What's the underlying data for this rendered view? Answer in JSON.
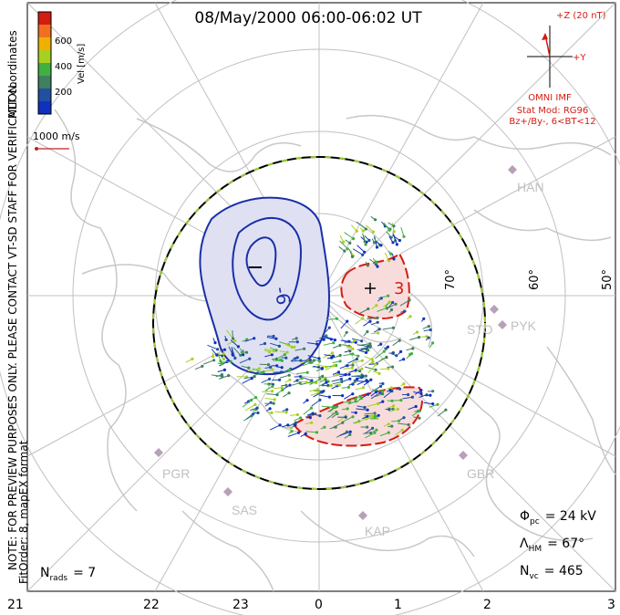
{
  "title": "08/May/2000 06:00-06:02 UT",
  "colorbar": {
    "label": "Vel [m/s]",
    "tick_labels": [
      "600",
      "400",
      "200"
    ],
    "colors": [
      "#d41c10",
      "#f07020",
      "#f0b000",
      "#a8d020",
      "#40b040",
      "#408060",
      "#2050a0",
      "#1030c0"
    ]
  },
  "coordinate_system": "MLT coordinates",
  "side_note": "NOTE: FOR PREVIEW PURPOSES ONLY. PLEASE CONTACT VT-SD STAFF FOR VERIFICATION.",
  "fit_order": "FitOrder: 8, mapEX format",
  "reference_vector": {
    "label": "1000 m/s",
    "color": "#c02020"
  },
  "imf": {
    "bz_label": "+Z (20 nT)",
    "by_label": "+Y",
    "source": "OMNI IMF",
    "stat_mod": "Stat Mod: RG96",
    "condition": "Bz+/By-, 6<BT<12",
    "color": "#d41c10"
  },
  "latitude_labels": [
    "70°",
    "60°",
    "50°"
  ],
  "mlt_labels": [
    "21",
    "22",
    "23",
    "0",
    "1",
    "2",
    "3"
  ],
  "stations": [
    "HAN",
    "STO",
    "PYK",
    "PGR",
    "SAS",
    "KAP",
    "GBR"
  ],
  "potential_contours": {
    "min_label": "-6",
    "max_label": "3",
    "negative_color": "#1a2fa8",
    "negative_fill": "#dfe1f3",
    "positive_color": "#d41c10",
    "positive_fill": "#f8dcdc"
  },
  "stats": {
    "phi_pc_symbol": "Φ",
    "phi_pc_sub": "pc",
    "phi_pc_value": "= 24 kV",
    "lambda_hm_symbol": "Λ",
    "lambda_hm_sub": "HM",
    "lambda_hm_value": "= 67°",
    "n_vc_symbol": "N",
    "n_vc_sub": "vc",
    "n_vc_value": "= 465",
    "n_rads_symbol": "N",
    "n_rads_sub": "rads",
    "n_rads_value": "= 7"
  },
  "heppner_maynard_boundary": {
    "colors": [
      "#000000",
      "#9acd32"
    ]
  }
}
